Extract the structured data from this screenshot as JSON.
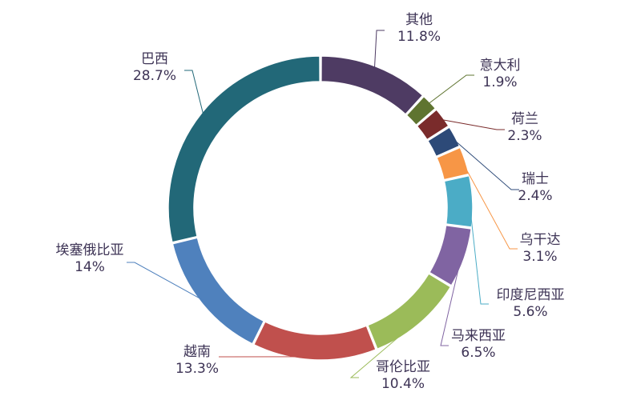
{
  "chart_data": {
    "type": "pie",
    "variant": "donut",
    "title": "",
    "legend": "none",
    "slices": [
      {
        "name": "其他",
        "pct_label": "11.8%",
        "value": 11.8,
        "color": "#4e3b63"
      },
      {
        "name": "意大利",
        "pct_label": "1.9%",
        "value": 1.9,
        "color": "#5f7430"
      },
      {
        "name": "荷兰",
        "pct_label": "2.3%",
        "value": 2.3,
        "color": "#7a2b2b"
      },
      {
        "name": "瑞士",
        "pct_label": "2.4%",
        "value": 2.4,
        "color": "#2d4a78"
      },
      {
        "name": "乌干达",
        "pct_label": "3.1%",
        "value": 3.1,
        "color": "#f79646"
      },
      {
        "name": "印度尼西亚",
        "pct_label": "5.6%",
        "value": 5.6,
        "color": "#4bacc6"
      },
      {
        "name": "马来西亚",
        "pct_label": "6.5%",
        "value": 6.5,
        "color": "#8064a2"
      },
      {
        "name": "哥伦比亚",
        "pct_label": "10.4%",
        "value": 10.4,
        "color": "#9bbb59"
      },
      {
        "name": "越南",
        "pct_label": "13.3%",
        "value": 13.3,
        "color": "#c0504d"
      },
      {
        "name": "埃塞俄比亚",
        "pct_label": "14%",
        "value": 14.0,
        "color": "#4f81bd"
      },
      {
        "name": "巴西",
        "pct_label": "28.7%",
        "value": 28.7,
        "color": "#226878"
      }
    ]
  }
}
